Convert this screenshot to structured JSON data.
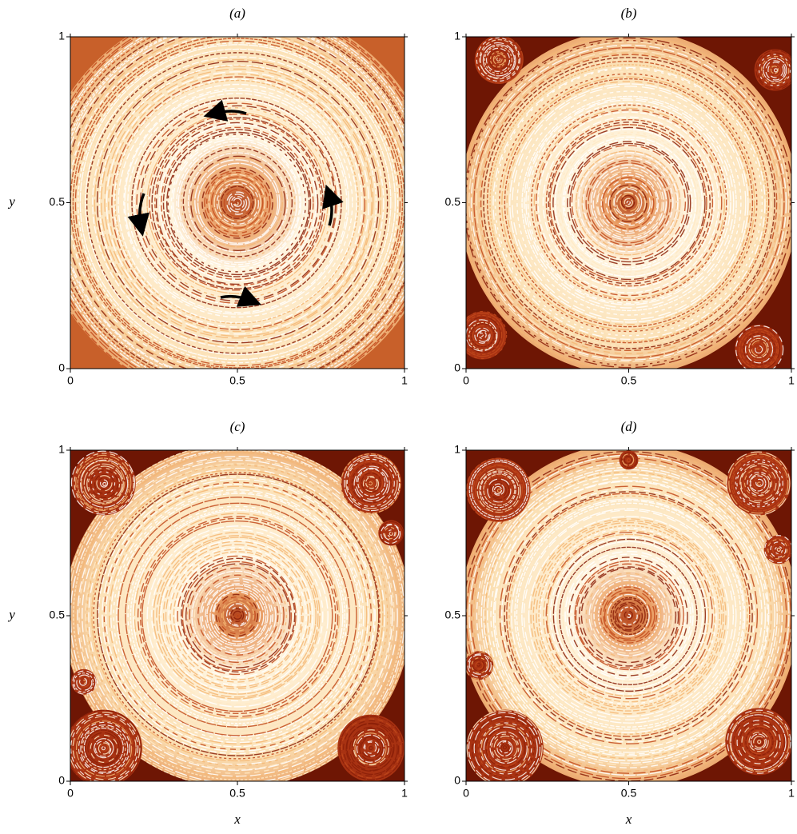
{
  "chart_data": [
    {
      "type": "image",
      "title": "(a)",
      "ylabel": "y",
      "xlim": [
        0,
        1
      ],
      "ylim": [
        0,
        1
      ],
      "xticks": [
        0,
        0.5,
        1
      ],
      "yticks": [
        0,
        0.5,
        1
      ]
    },
    {
      "type": "image",
      "title": "(b)",
      "xlim": [
        0,
        1
      ],
      "ylim": [
        0,
        1
      ],
      "xticks": [
        0,
        0.5,
        1
      ],
      "yticks": [
        0,
        0.5,
        1
      ]
    },
    {
      "type": "image",
      "title": "(c)",
      "xlabel": "x",
      "ylabel": "y",
      "xlim": [
        0,
        1
      ],
      "ylim": [
        0,
        1
      ],
      "xticks": [
        0,
        0.5,
        1
      ],
      "yticks": [
        0,
        0.5,
        1
      ]
    },
    {
      "type": "image",
      "title": "(d)",
      "xlabel": "x",
      "xlim": [
        0,
        1
      ],
      "ylim": [
        0,
        1
      ],
      "xticks": [
        0,
        0.5,
        1
      ],
      "yticks": [
        0,
        0.5,
        1
      ]
    }
  ]
}
